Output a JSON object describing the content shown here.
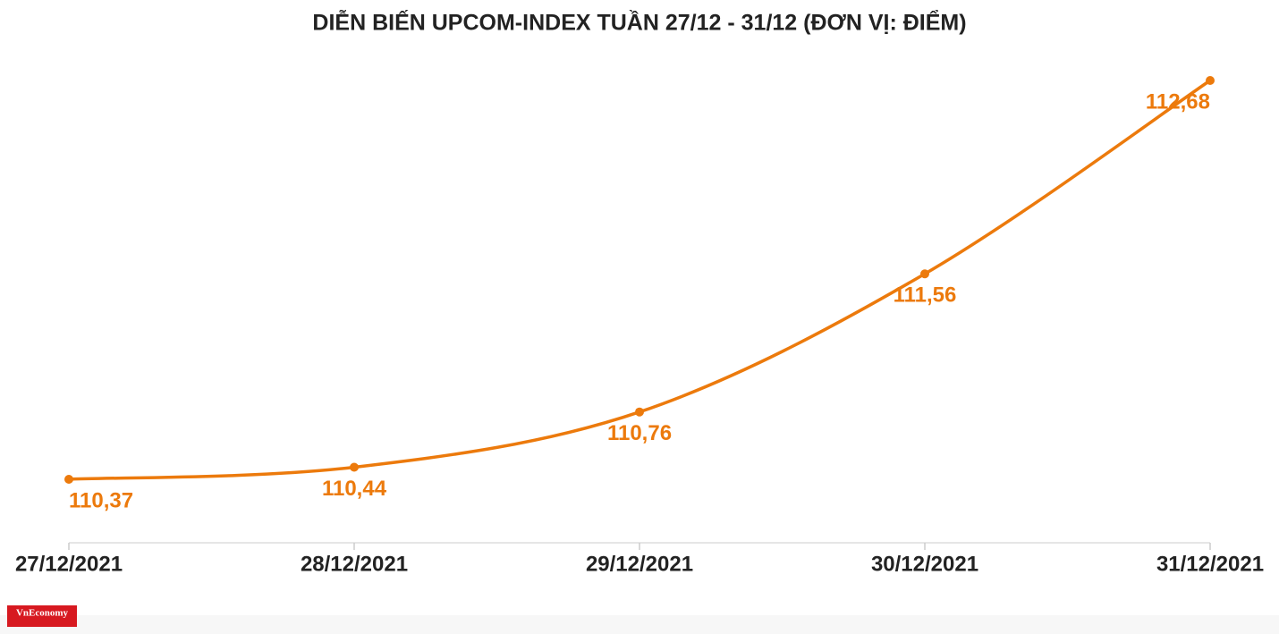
{
  "chart_data": {
    "type": "line",
    "title": "DIỄN BIẾN UPCOM-INDEX TUẦN 27/12 - 31/12 (ĐƠN VỊ: ĐIỂM)",
    "categories": [
      "27/12/2021",
      "28/12/2021",
      "29/12/2021",
      "30/12/2021",
      "31/12/2021"
    ],
    "values": [
      110.37,
      110.44,
      110.76,
      111.56,
      112.68
    ],
    "value_labels": [
      "110,37",
      "110,44",
      "110,76",
      "111,56",
      "112,68"
    ],
    "color": "#ec7a0c",
    "logo": "VnEconomy"
  }
}
